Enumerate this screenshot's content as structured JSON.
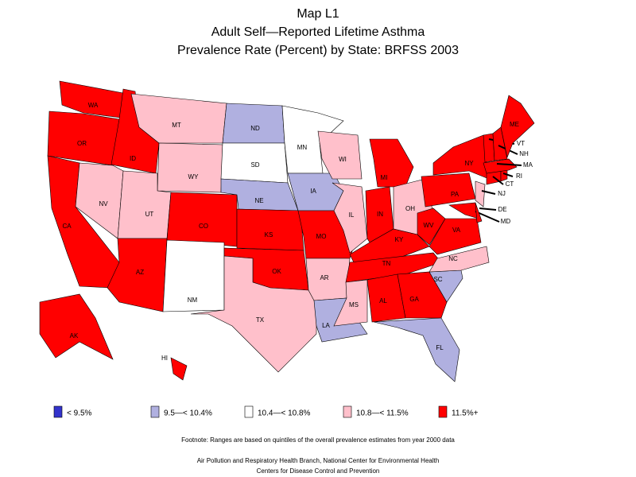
{
  "title": [
    "Map L1",
    "Adult Self—Reported Lifetime Asthma",
    "Prevalence Rate (Percent) by State: BRFSS 2003"
  ],
  "states": [
    {
      "label": "WA",
      "color": "#ff0000"
    },
    {
      "label": "OR",
      "color": "#ff0000"
    },
    {
      "label": "CA",
      "color": "#ff0000"
    },
    {
      "label": "ID",
      "color": "#ff0000"
    },
    {
      "label": "NV",
      "color": "#ffc0cb"
    },
    {
      "label": "MT",
      "color": "#ffc0cb"
    },
    {
      "label": "WY",
      "color": "#ffc0cb"
    },
    {
      "label": "UT",
      "color": "#ffc0cb"
    },
    {
      "label": "AZ",
      "color": "#ff0000"
    },
    {
      "label": "CO",
      "color": "#ff0000"
    },
    {
      "label": "NM",
      "color": "#ffffff"
    },
    {
      "label": "ND",
      "color": "#b0b0e0"
    },
    {
      "label": "SD",
      "color": "#ffffff"
    },
    {
      "label": "NE",
      "color": "#b0b0e0"
    },
    {
      "label": "KS",
      "color": "#ff0000"
    },
    {
      "label": "OK",
      "color": "#ff0000"
    },
    {
      "label": "TX",
      "color": "#ffc0cb"
    },
    {
      "label": "MN",
      "color": "#ffffff"
    },
    {
      "label": "IA",
      "color": "#b0b0e0"
    },
    {
      "label": "MO",
      "color": "#ff0000"
    },
    {
      "label": "AR",
      "color": "#ffc0cb"
    },
    {
      "label": "LA",
      "color": "#b0b0e0"
    },
    {
      "label": "WI",
      "color": "#ffc0cb"
    },
    {
      "label": "IL",
      "color": "#ffc0cb"
    },
    {
      "label": "MI",
      "color": "#ff0000"
    },
    {
      "label": "IN",
      "color": "#ff0000"
    },
    {
      "label": "OH",
      "color": "#ffc0cb"
    },
    {
      "label": "KY",
      "color": "#ff0000"
    },
    {
      "label": "TN",
      "color": "#ff0000"
    },
    {
      "label": "MS",
      "color": "#ffc0cb"
    },
    {
      "label": "AL",
      "color": "#ff0000"
    },
    {
      "label": "GA",
      "color": "#ff0000"
    },
    {
      "label": "FL",
      "color": "#b0b0e0"
    },
    {
      "label": "SC",
      "color": "#b0b0e0"
    },
    {
      "label": "NC",
      "color": "#ffc0cb"
    },
    {
      "label": "VA",
      "color": "#ff0000"
    },
    {
      "label": "WV",
      "color": "#ff0000"
    },
    {
      "label": "PA",
      "color": "#ff0000"
    },
    {
      "label": "NY",
      "color": "#ff0000"
    },
    {
      "label": "MD",
      "color": "#ff0000"
    },
    {
      "label": "DE",
      "color": "#ff0000"
    },
    {
      "label": "NJ",
      "color": "#ffc0cb"
    },
    {
      "label": "CT",
      "color": "#ff0000"
    },
    {
      "label": "RI",
      "color": "#ff0000"
    },
    {
      "label": "MA",
      "color": "#ff0000"
    },
    {
      "label": "VT",
      "color": "#ff0000"
    },
    {
      "label": "NH",
      "color": "#ff0000"
    },
    {
      "label": "ME",
      "color": "#ff0000"
    },
    {
      "label": "AK",
      "color": "#ff0000"
    },
    {
      "label": "HI",
      "color": "#ff0000"
    }
  ],
  "legend": [
    {
      "label": "< 9.5%",
      "color": "#3333cc"
    },
    {
      "label": "9.5—< 10.4%",
      "color": "#b0b0e0"
    },
    {
      "label": "10.4—< 10.8%",
      "color": "#ffffff"
    },
    {
      "label": "10.8—< 11.5%",
      "color": "#ffc0cb"
    },
    {
      "label": "11.5%+",
      "color": "#ff0000"
    }
  ],
  "footnote": "Footnote: Ranges are based on quintiles of the overall prevalence estimates from year 2000 data",
  "credits": [
    "Air Pollution and Respiratory Health Branch, National Center for Environmental Health",
    "Centers for Disease Control and Prevention"
  ]
}
